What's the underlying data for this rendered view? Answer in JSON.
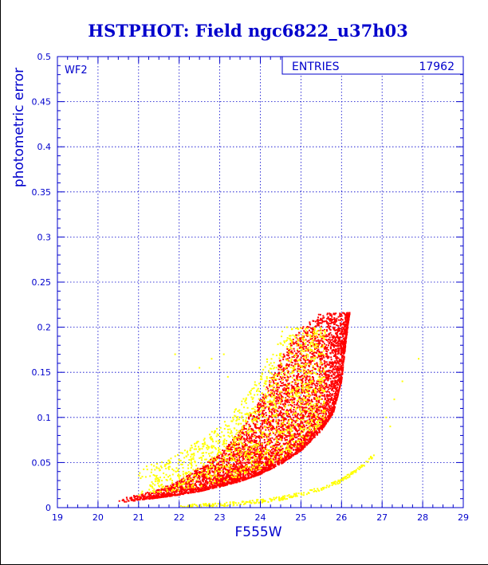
{
  "chart_data": {
    "type": "scatter",
    "title": "HSTPHOT: Field ngc6822_u37h03",
    "xlabel": "F555W",
    "ylabel": "photometric error",
    "xlim": [
      19,
      29
    ],
    "ylim": [
      0,
      0.5
    ],
    "x_ticks": [
      "19",
      "20",
      "21",
      "22",
      "23",
      "24",
      "25",
      "26",
      "27",
      "28",
      "29"
    ],
    "y_ticks": [
      "0",
      "0.05",
      "0.1",
      "0.15",
      "0.2",
      "0.25",
      "0.3",
      "0.35",
      "0.4",
      "0.45",
      "0.5"
    ],
    "grid": true,
    "panel_label": "WF2",
    "stats_box": {
      "label": "ENTRIES",
      "value": "17962"
    },
    "series": [
      {
        "color": "#ff0000",
        "envelope_min_error": [
          [
            20.4,
            0.005
          ],
          [
            21.0,
            0.008
          ],
          [
            21.5,
            0.011
          ],
          [
            22.0,
            0.014
          ],
          [
            22.5,
            0.018
          ],
          [
            23.0,
            0.023
          ],
          [
            23.5,
            0.029
          ],
          [
            24.0,
            0.037
          ],
          [
            24.5,
            0.048
          ],
          [
            25.0,
            0.063
          ],
          [
            25.5,
            0.085
          ],
          [
            25.8,
            0.105
          ],
          [
            26.0,
            0.14
          ],
          [
            26.15,
            0.2
          ],
          [
            26.2,
            0.216
          ]
        ],
        "envelope_max_error": [
          [
            20.4,
            0.008
          ],
          [
            21.5,
            0.02
          ],
          [
            22.0,
            0.03
          ],
          [
            22.5,
            0.045
          ],
          [
            23.0,
            0.06
          ],
          [
            23.5,
            0.085
          ],
          [
            24.0,
            0.12
          ],
          [
            24.5,
            0.165
          ],
          [
            25.0,
            0.2
          ],
          [
            25.5,
            0.216
          ],
          [
            26.2,
            0.216
          ]
        ],
        "x_range": [
          20.4,
          26.2
        ],
        "max_error": 0.216
      },
      {
        "color": "#ffff00",
        "main_cloud_x_range": [
          21.0,
          26.2
        ],
        "main_cloud_error_range": [
          0.0,
          0.2
        ],
        "lower_sequence": [
          [
            22.0,
            0.001
          ],
          [
            23.0,
            0.003
          ],
          [
            24.0,
            0.007
          ],
          [
            24.5,
            0.01
          ],
          [
            25.0,
            0.015
          ],
          [
            25.5,
            0.021
          ],
          [
            26.0,
            0.03
          ],
          [
            26.5,
            0.045
          ],
          [
            26.8,
            0.058
          ]
        ],
        "sparse_points": [
          [
            21.9,
            0.17
          ],
          [
            22.5,
            0.155
          ],
          [
            22.8,
            0.165
          ],
          [
            23.2,
            0.145
          ],
          [
            23.1,
            0.17
          ],
          [
            27.3,
            0.12
          ],
          [
            27.5,
            0.14
          ],
          [
            27.1,
            0.1
          ],
          [
            27.9,
            0.165
          ],
          [
            27.2,
            0.09
          ]
        ]
      }
    ]
  }
}
